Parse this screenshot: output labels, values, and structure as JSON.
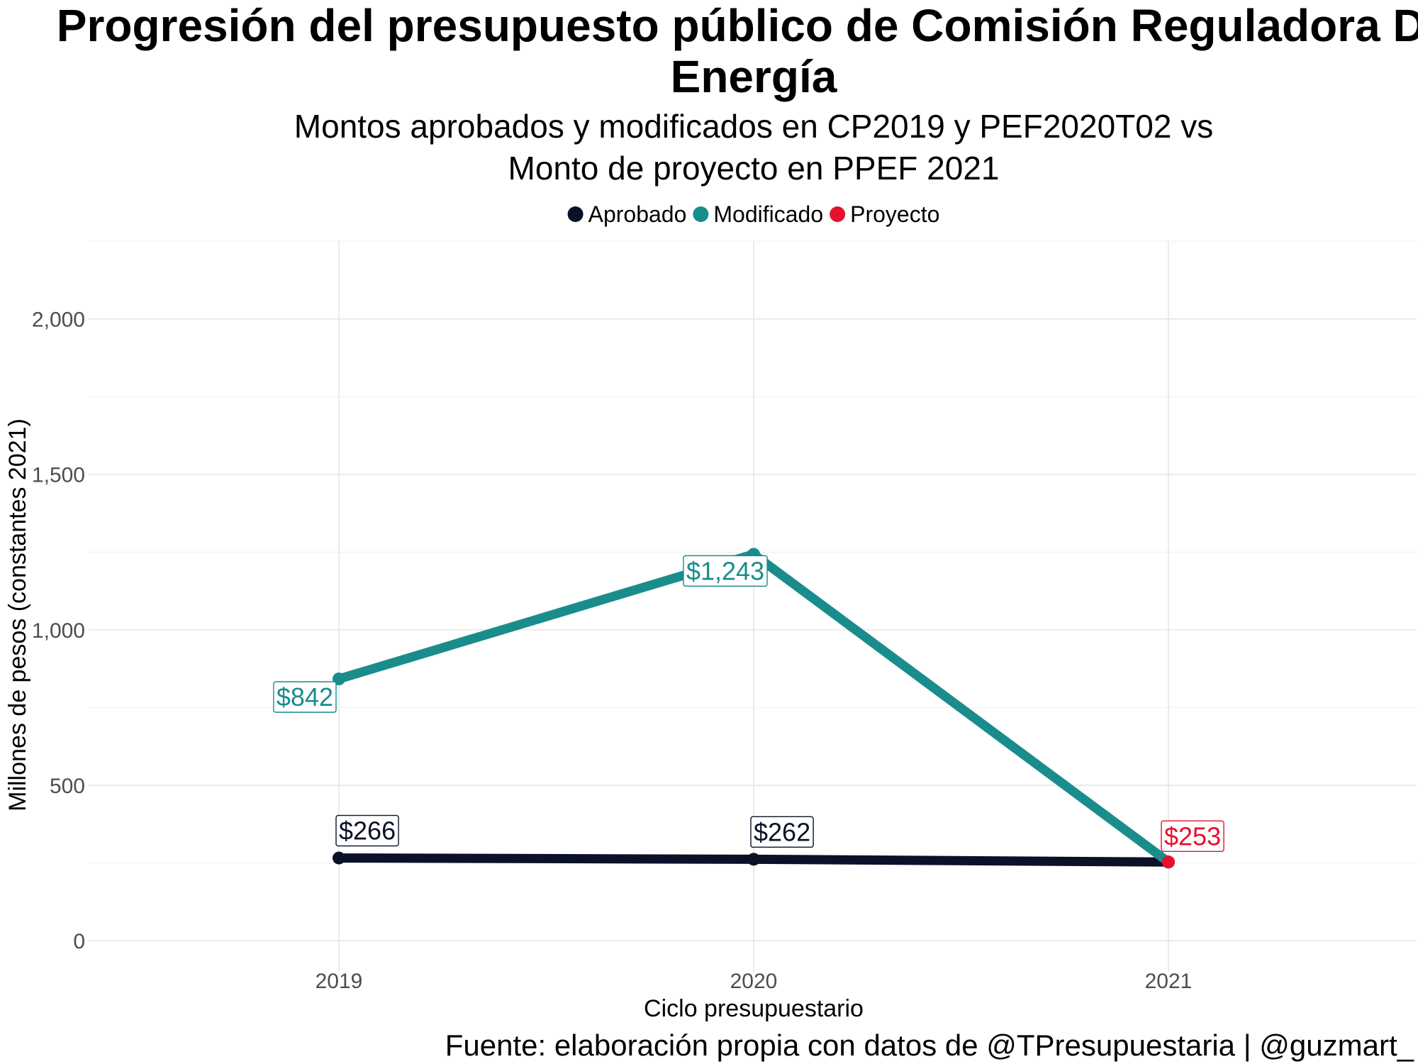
{
  "chart_data": {
    "type": "line",
    "title_line1": "Progresión del presupuesto público de Comisión Reguladora De",
    "title_line2": "Energía",
    "subtitle_line1": "Montos aprobados y modificados en CP2019 y PEF2020T02 vs",
    "subtitle_line2": "Monto de proyecto en PPEF 2021",
    "xlabel": "Ciclo presupuestario",
    "ylabel": "Millones de pesos (constantes 2021)",
    "caption": "Fuente: elaboración propia con datos de @TPresupuestaria | @guzmart_",
    "categories": [
      "2019",
      "2020",
      "2021"
    ],
    "y_ticks": [
      "0",
      "500",
      "1,000",
      "1,500",
      "2,000"
    ],
    "y_tick_values": [
      0,
      500,
      1000,
      1500,
      2000
    ],
    "ylim": [
      -100,
      2250
    ],
    "grid": true,
    "legend_position": "top",
    "legend": [
      {
        "name": "Aprobado",
        "color": "#0a1128"
      },
      {
        "name": "Modificado",
        "color": "#1a8c8c"
      },
      {
        "name": "Proyecto",
        "color": "#e8112d"
      }
    ],
    "series": [
      {
        "name": "Aprobado",
        "color": "#0a1128",
        "x": [
          "2019",
          "2020",
          "2021"
        ],
        "values": [
          266,
          262,
          253
        ],
        "labels": [
          "$266",
          "$262",
          null
        ]
      },
      {
        "name": "Modificado",
        "color": "#1a8c8c",
        "x": [
          "2019",
          "2020",
          "2021"
        ],
        "values": [
          842,
          1243,
          253
        ],
        "labels": [
          "$842",
          "$1,243",
          null
        ]
      },
      {
        "name": "Proyecto",
        "color": "#e8112d",
        "x": [
          "2021"
        ],
        "values": [
          253
        ],
        "labels": [
          "$253"
        ]
      }
    ]
  }
}
